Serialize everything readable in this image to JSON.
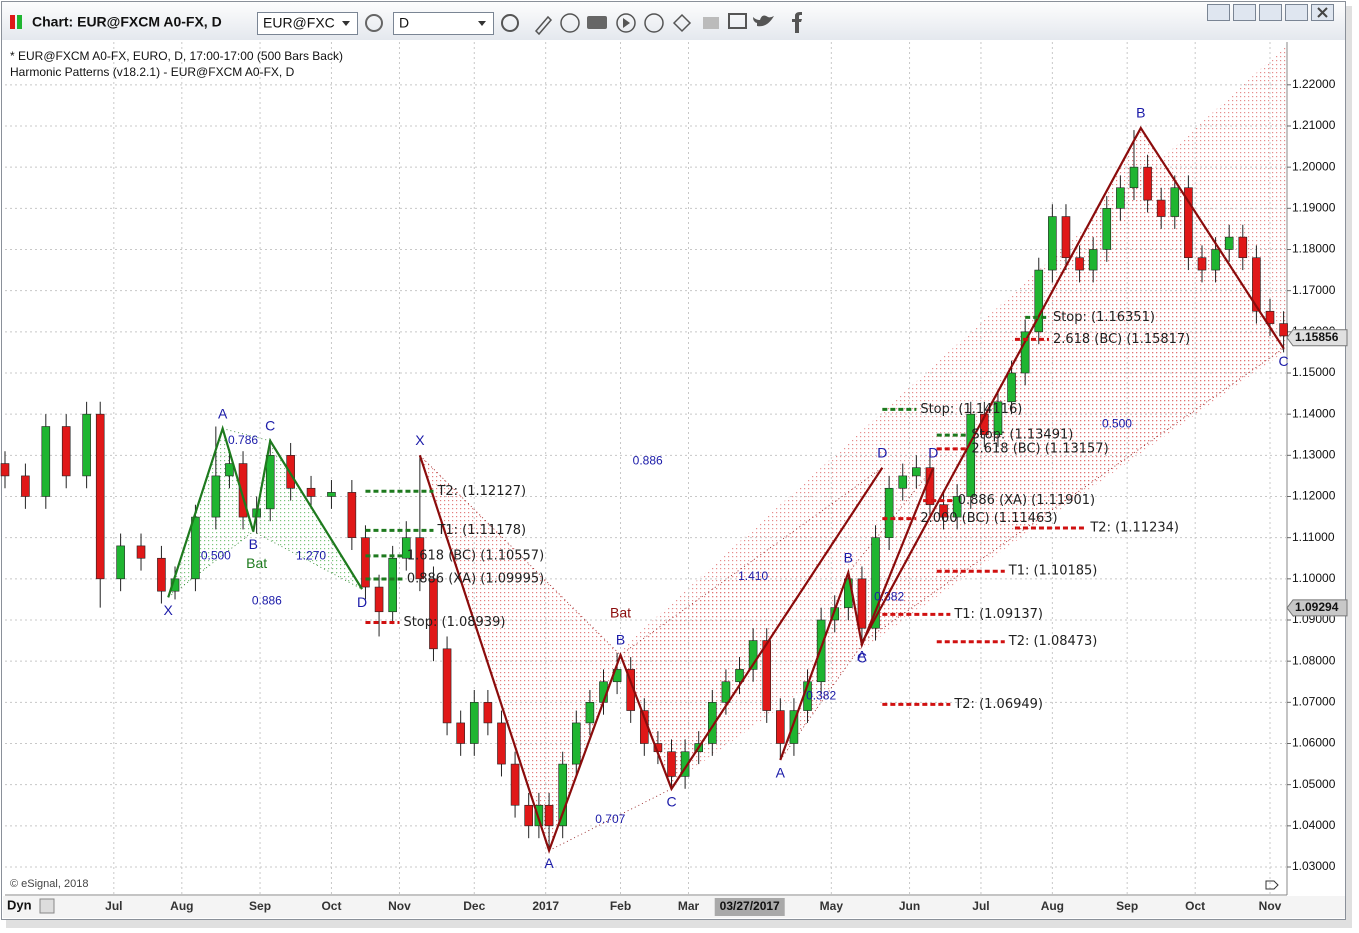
{
  "window": {
    "title": "Chart: EUR@FXCM A0-FX, D",
    "symbol": "EUR@FXC",
    "interval": "D"
  },
  "chart_data": {
    "type": "candlestick",
    "title": "* EUR@FXCM A0-FX, EURO, D, 17:00-17:00 (500 Bars Back)",
    "subtitle": "Harmonic Patterns (v18.2.1) - EUR@FXCM A0-FX, D",
    "copyright": "© eSignal, 2018",
    "corner_label": "Dyn",
    "up_color": "#1fb531",
    "down_color": "#e01818",
    "xlim": [
      0,
      377
    ],
    "ylim": [
      1.0232,
      1.2304
    ],
    "xticks": [
      {
        "value": 32,
        "label": "Jul"
      },
      {
        "value": 52,
        "label": "Aug"
      },
      {
        "value": 75,
        "label": "Sep"
      },
      {
        "value": 96,
        "label": "Oct"
      },
      {
        "value": 116,
        "label": "Nov"
      },
      {
        "value": 138,
        "label": "Dec"
      },
      {
        "value": 159,
        "label": "2017"
      },
      {
        "value": 181,
        "label": "Feb"
      },
      {
        "value": 201,
        "label": "Mar"
      },
      {
        "value": 243,
        "label": "May"
      },
      {
        "value": 266,
        "label": "Jun"
      },
      {
        "value": 287,
        "label": "Jul"
      },
      {
        "value": 308,
        "label": "Aug"
      },
      {
        "value": 330,
        "label": "Sep"
      },
      {
        "value": 350,
        "label": "Oct"
      },
      {
        "value": 372,
        "label": "Nov"
      }
    ],
    "x_cursor": {
      "value": 219,
      "label": "03/27/2017"
    },
    "yticks": [
      {
        "value": 1.03,
        "label": "1.03000"
      },
      {
        "value": 1.04,
        "label": "1.04000"
      },
      {
        "value": 1.05,
        "label": "1.05000"
      },
      {
        "value": 1.06,
        "label": "1.06000"
      },
      {
        "value": 1.07,
        "label": "1.07000"
      },
      {
        "value": 1.08,
        "label": "1.08000"
      },
      {
        "value": 1.09,
        "label": "1.09000"
      },
      {
        "value": 1.1,
        "label": "1.10000"
      },
      {
        "value": 1.11,
        "label": "1.11000"
      },
      {
        "value": 1.12,
        "label": "1.12000"
      },
      {
        "value": 1.13,
        "label": "1.13000"
      },
      {
        "value": 1.14,
        "label": "1.14000"
      },
      {
        "value": 1.15,
        "label": "1.15000"
      },
      {
        "value": 1.16,
        "label": "1.16000"
      },
      {
        "value": 1.17,
        "label": "1.17000"
      },
      {
        "value": 1.18,
        "label": "1.18000"
      },
      {
        "value": 1.19,
        "label": "1.19000"
      },
      {
        "value": 1.2,
        "label": "1.20000"
      },
      {
        "value": 1.21,
        "label": "1.21000"
      },
      {
        "value": 1.22,
        "label": "1.22000"
      }
    ],
    "grid": true,
    "last_price": 1.15856,
    "cursor_price": 1.09294,
    "x": [
      0,
      6,
      12,
      18,
      24,
      28,
      34,
      40,
      46,
      50,
      56,
      62,
      66,
      70,
      74,
      78,
      84,
      90,
      96,
      102,
      106,
      110,
      114,
      118,
      122,
      126,
      130,
      134,
      138,
      142,
      146,
      150,
      154,
      157,
      160,
      164,
      168,
      172,
      176,
      180,
      184,
      188,
      192,
      196,
      200,
      204,
      208,
      212,
      216,
      220,
      224,
      228,
      232,
      236,
      240,
      244,
      248,
      252,
      256,
      260,
      264,
      268,
      272,
      276,
      280,
      284,
      288,
      292,
      296,
      300,
      304,
      308,
      312,
      316,
      320,
      324,
      328,
      332,
      336,
      340,
      344,
      348,
      352,
      356,
      360,
      364,
      368,
      372,
      376
    ],
    "open": [
      1.128,
      1.125,
      1.12,
      1.137,
      1.125,
      1.14,
      1.1,
      1.108,
      1.105,
      1.097,
      1.1,
      1.115,
      1.125,
      1.128,
      1.115,
      1.117,
      1.13,
      1.122,
      1.12,
      1.121,
      1.11,
      1.098,
      1.092,
      1.105,
      1.11,
      1.1,
      1.083,
      1.065,
      1.06,
      1.07,
      1.065,
      1.055,
      1.045,
      1.04,
      1.045,
      1.04,
      1.055,
      1.065,
      1.07,
      1.075,
      1.078,
      1.068,
      1.06,
      1.058,
      1.052,
      1.058,
      1.06,
      1.07,
      1.075,
      1.078,
      1.085,
      1.068,
      1.06,
      1.068,
      1.075,
      1.09,
      1.093,
      1.1,
      1.088,
      1.11,
      1.122,
      1.125,
      1.127,
      1.118,
      1.115,
      1.12,
      1.14,
      1.135,
      1.143,
      1.15,
      1.16,
      1.175,
      1.188,
      1.178,
      1.175,
      1.18,
      1.19,
      1.195,
      1.2,
      1.192,
      1.188,
      1.195,
      1.178,
      1.175,
      1.18,
      1.183,
      1.178,
      1.165,
      1.162
    ],
    "high": [
      1.131,
      1.128,
      1.14,
      1.14,
      1.143,
      1.143,
      1.111,
      1.111,
      1.108,
      1.103,
      1.118,
      1.137,
      1.131,
      1.131,
      1.12,
      1.134,
      1.133,
      1.125,
      1.124,
      1.124,
      1.113,
      1.101,
      1.108,
      1.114,
      1.13,
      1.103,
      1.086,
      1.068,
      1.073,
      1.073,
      1.068,
      1.058,
      1.048,
      1.048,
      1.048,
      1.058,
      1.068,
      1.073,
      1.078,
      1.082,
      1.081,
      1.071,
      1.063,
      1.061,
      1.061,
      1.063,
      1.073,
      1.078,
      1.081,
      1.088,
      1.088,
      1.071,
      1.071,
      1.078,
      1.093,
      1.096,
      1.102,
      1.103,
      1.113,
      1.125,
      1.128,
      1.13,
      1.13,
      1.121,
      1.123,
      1.143,
      1.143,
      1.146,
      1.153,
      1.163,
      1.178,
      1.191,
      1.191,
      1.181,
      1.183,
      1.193,
      1.198,
      1.209,
      1.203,
      1.195,
      1.198,
      1.198,
      1.181,
      1.183,
      1.186,
      1.186,
      1.181,
      1.168,
      1.165
    ],
    "low": [
      1.122,
      1.117,
      1.117,
      1.122,
      1.122,
      1.093,
      1.097,
      1.102,
      1.094,
      1.095,
      1.097,
      1.112,
      1.122,
      1.112,
      1.111,
      1.114,
      1.119,
      1.117,
      1.117,
      1.107,
      1.095,
      1.086,
      1.089,
      1.102,
      1.097,
      1.08,
      1.062,
      1.057,
      1.057,
      1.062,
      1.052,
      1.042,
      1.037,
      1.037,
      1.034,
      1.037,
      1.052,
      1.062,
      1.067,
      1.072,
      1.065,
      1.057,
      1.055,
      1.049,
      1.049,
      1.055,
      1.057,
      1.067,
      1.072,
      1.075,
      1.065,
      1.056,
      1.057,
      1.065,
      1.072,
      1.087,
      1.09,
      1.084,
      1.085,
      1.107,
      1.119,
      1.122,
      1.115,
      1.112,
      1.112,
      1.117,
      1.132,
      1.132,
      1.14,
      1.147,
      1.157,
      1.172,
      1.175,
      1.172,
      1.172,
      1.177,
      1.187,
      1.192,
      1.189,
      1.185,
      1.185,
      1.175,
      1.172,
      1.172,
      1.177,
      1.175,
      1.162,
      1.159,
      1.155
    ],
    "close": [
      1.125,
      1.12,
      1.137,
      1.125,
      1.14,
      1.1,
      1.108,
      1.105,
      1.097,
      1.1,
      1.115,
      1.125,
      1.128,
      1.115,
      1.117,
      1.13,
      1.122,
      1.12,
      1.121,
      1.11,
      1.098,
      1.092,
      1.105,
      1.11,
      1.1,
      1.083,
      1.065,
      1.06,
      1.07,
      1.065,
      1.055,
      1.045,
      1.04,
      1.045,
      1.04,
      1.055,
      1.065,
      1.07,
      1.075,
      1.078,
      1.068,
      1.06,
      1.058,
      1.052,
      1.058,
      1.06,
      1.07,
      1.075,
      1.078,
      1.085,
      1.068,
      1.06,
      1.068,
      1.075,
      1.09,
      1.093,
      1.1,
      1.088,
      1.11,
      1.122,
      1.125,
      1.127,
      1.118,
      1.115,
      1.12,
      1.14,
      1.135,
      1.143,
      1.15,
      1.16,
      1.175,
      1.188,
      1.178,
      1.175,
      1.18,
      1.19,
      1.195,
      1.2,
      1.192,
      1.188,
      1.195,
      1.178,
      1.175,
      1.18,
      1.183,
      1.178,
      1.165,
      1.162,
      1.159
    ],
    "patterns": [
      {
        "name": "Bat",
        "color": "#1e7a1e",
        "name_at": {
          "x": 74,
          "y": 1.1035
        },
        "points": [
          {
            "label": "X",
            "x": 48,
            "y": 1.0955
          },
          {
            "label": "A",
            "x": 64,
            "y": 1.1365
          },
          {
            "label": "B",
            "x": 73,
            "y": 1.1115
          },
          {
            "label": "C",
            "x": 78,
            "y": 1.1335
          },
          {
            "label": "D",
            "x": 105,
            "y": 1.0975
          }
        ],
        "ratios": [
          {
            "label": "0.786",
            "x": 70,
            "y": 1.1335
          },
          {
            "label": "0.500",
            "x": 62,
            "y": 1.1055
          },
          {
            "label": "1.270",
            "x": 90,
            "y": 1.1055
          },
          {
            "label": "0.886",
            "x": 77,
            "y": 1.0945
          }
        ]
      },
      {
        "name": "Bat",
        "color": "#8b0c0c",
        "name_at": {
          "x": 181,
          "y": 1.0915
        },
        "points": [
          {
            "label": "X",
            "x": 122,
            "y": 1.13
          },
          {
            "label": "A",
            "x": 160,
            "y": 1.034
          },
          {
            "label": "B",
            "x": 181,
            "y": 1.0815
          },
          {
            "label": "C",
            "x": 196,
            "y": 1.049
          },
          {
            "label": "D",
            "x": 258,
            "y": 1.127
          }
        ],
        "ratios": [
          {
            "label": "0.886",
            "x": 189,
            "y": 1.1285
          },
          {
            "label": "0.707",
            "x": 178,
            "y": 1.0415
          },
          {
            "label": "1.410",
            "x": 220,
            "y": 1.1005
          }
        ]
      },
      {
        "name": null,
        "color": "#8b0c0c",
        "name_at": null,
        "points": [
          {
            "label": "A",
            "x": 228,
            "y": 1.056
          },
          {
            "label": "B",
            "x": 248,
            "y": 1.1015
          },
          {
            "label": "C",
            "x": 252,
            "y": 1.084
          },
          {
            "label": "D",
            "x": 273,
            "y": 1.127
          }
        ],
        "ratios": [
          {
            "label": "0.382",
            "x": 240,
            "y": 1.0715
          },
          {
            "label": "0.382",
            "x": 260,
            "y": 1.0955
          }
        ]
      },
      {
        "name": null,
        "color": "#8b0c0c",
        "name_at": null,
        "points": [
          {
            "label": "A",
            "x": 252,
            "y": 1.0845
          },
          {
            "label": "B",
            "x": 334,
            "y": 1.2095
          },
          {
            "label": "C",
            "x": 376,
            "y": 1.156
          }
        ],
        "ratios": [
          {
            "label": "0.500",
            "x": 327,
            "y": 1.1375
          }
        ]
      }
    ],
    "levels": [
      {
        "label": "T2: (1.12127)",
        "value": 1.12127,
        "color": "#1e7a1e",
        "x0": 106,
        "x1": 126
      },
      {
        "label": "T1: (1.11178)",
        "value": 1.11178,
        "color": "#1e7a1e",
        "x0": 106,
        "x1": 126
      },
      {
        "label": "1.618 (BC) (1.10557)",
        "value": 1.10557,
        "color": "#1e7a1e",
        "x0": 106,
        "x1": 117
      },
      {
        "label": "0.886 (XA) (1.09995)",
        "value": 1.09995,
        "color": "#1e7a1e",
        "x0": 106,
        "x1": 117
      },
      {
        "label": "Stop: (1.08939)",
        "value": 1.08939,
        "color": "#d01010",
        "x0": 106,
        "x1": 116
      },
      {
        "label": "Stop: (1.14116)",
        "value": 1.14116,
        "color": "#1e7a1e",
        "x0": 258,
        "x1": 268
      },
      {
        "label": "Stop: (1.13491)",
        "value": 1.13491,
        "color": "#1e7a1e",
        "x0": 274,
        "x1": 283
      },
      {
        "label": "2.618 (BC) (1.13157)",
        "value": 1.13157,
        "color": "#d01010",
        "x0": 274,
        "x1": 283
      },
      {
        "label": "0.886 (XA) (1.11901)",
        "value": 1.11901,
        "color": "#d01010",
        "x0": 270,
        "x1": 279
      },
      {
        "label": "2.000 (BC) (1.11463)",
        "value": 1.11463,
        "color": "#d01010",
        "x0": 258,
        "x1": 268
      },
      {
        "label": "Stop: (1.16351)",
        "value": 1.16351,
        "color": "#1e7a1e",
        "x0": 300,
        "x1": 307
      },
      {
        "label": "2.618 (BC) (1.15817)",
        "value": 1.15817,
        "color": "#d01010",
        "x0": 297,
        "x1": 307
      },
      {
        "label": "T2: (1.11234)",
        "value": 1.11234,
        "color": "#d01010",
        "x0": 297,
        "x1": 318
      },
      {
        "label": "T1: (1.10185)",
        "value": 1.10185,
        "color": "#d01010",
        "x0": 274,
        "x1": 294
      },
      {
        "label": "T1: (1.09137)",
        "value": 1.09137,
        "color": "#d01010",
        "x0": 258,
        "x1": 278
      },
      {
        "label": "T2: (1.08473)",
        "value": 1.08473,
        "color": "#d01010",
        "x0": 274,
        "x1": 294
      },
      {
        "label": "T2: (1.06949)",
        "value": 1.06949,
        "color": "#d01010",
        "x0": 258,
        "x1": 278
      }
    ]
  }
}
